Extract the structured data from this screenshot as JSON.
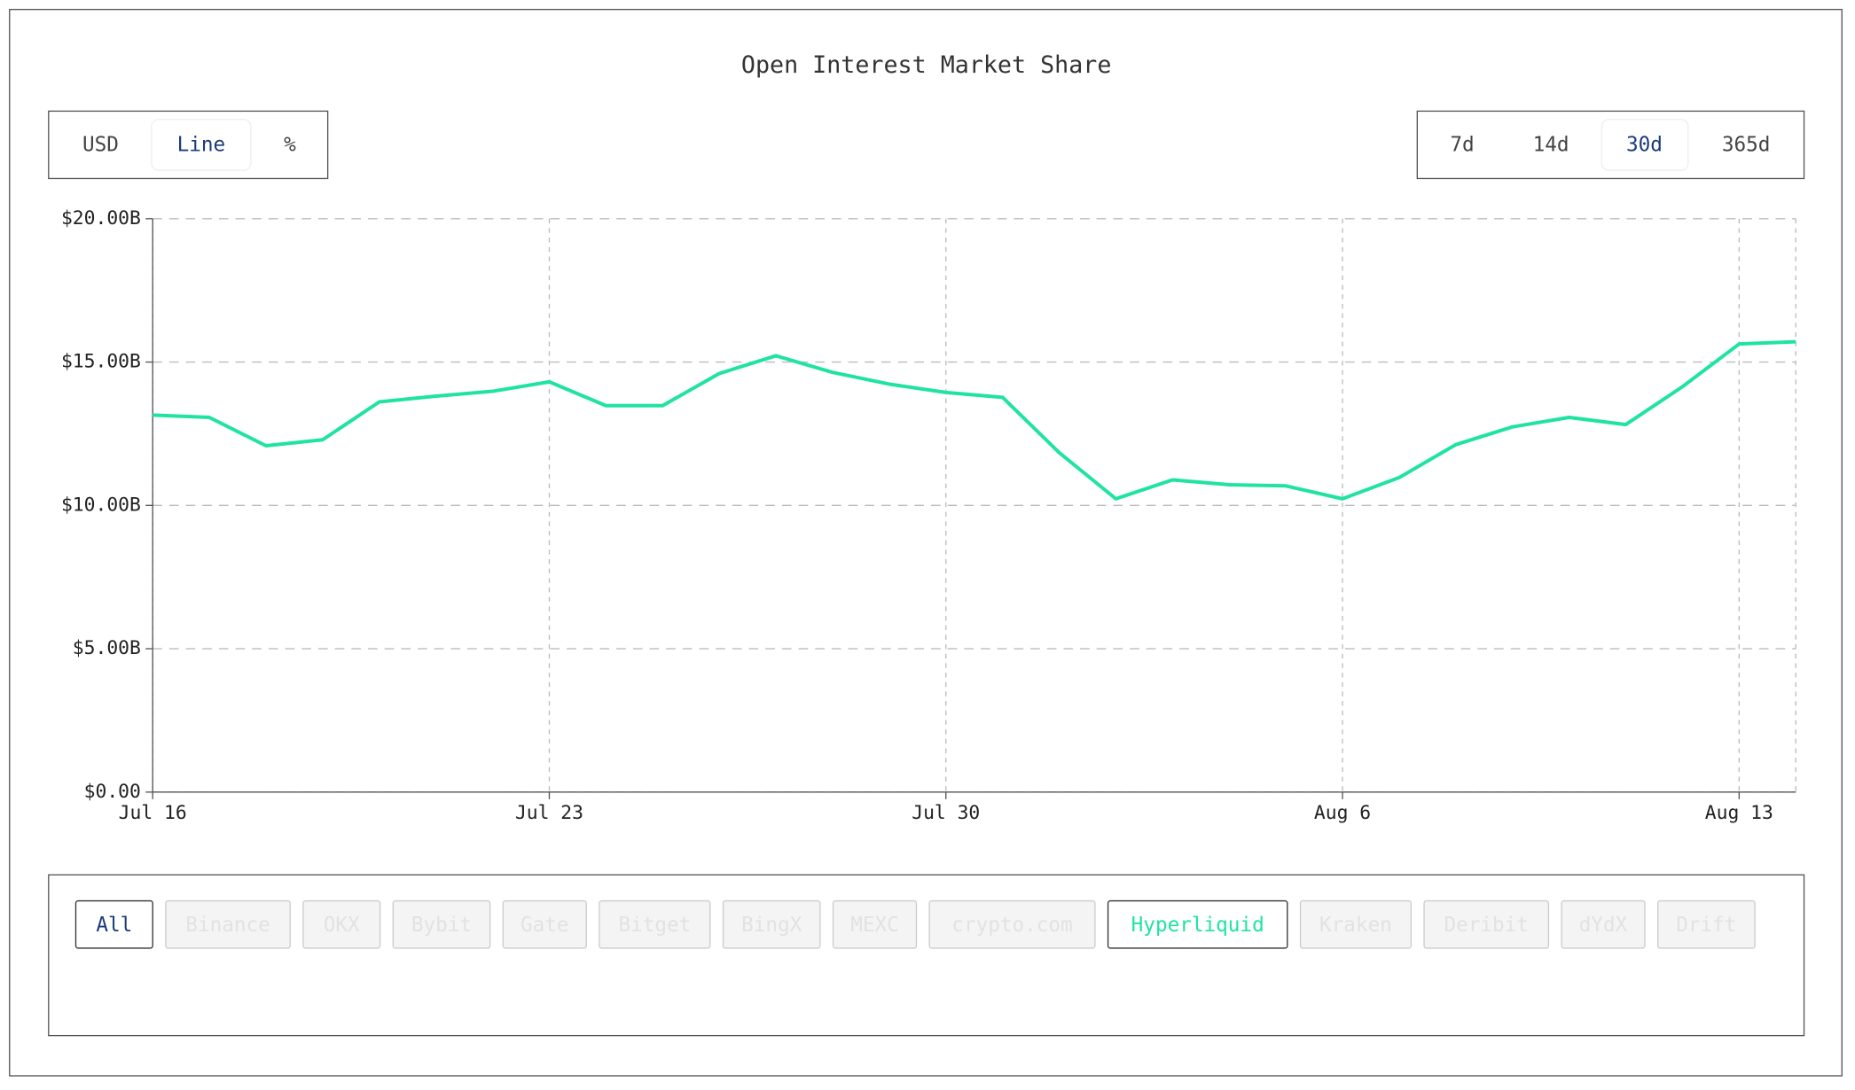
{
  "chart_data": {
    "type": "line",
    "title": "Open Interest Market Share",
    "x": [
      "Jul 16",
      "Jul 17",
      "Jul 18",
      "Jul 19",
      "Jul 20",
      "Jul 21",
      "Jul 22",
      "Jul 23",
      "Jul 24",
      "Jul 25",
      "Jul 26",
      "Jul 27",
      "Jul 28",
      "Jul 29",
      "Jul 30",
      "Jul 31",
      "Aug 1",
      "Aug 2",
      "Aug 3",
      "Aug 4",
      "Aug 5",
      "Aug 6",
      "Aug 7",
      "Aug 8",
      "Aug 9",
      "Aug 10",
      "Aug 11",
      "Aug 12",
      "Aug 13",
      "Aug 14"
    ],
    "series": [
      {
        "color": "#20e3a2",
        "values": [
          13.15,
          13.07,
          12.08,
          12.29,
          13.61,
          13.81,
          13.98,
          14.31,
          13.48,
          13.48,
          14.6,
          15.22,
          14.64,
          14.23,
          13.94,
          13.77,
          11.84,
          10.23,
          10.89,
          10.72,
          10.68,
          10.23,
          10.97,
          12.12,
          12.74,
          13.07,
          12.82,
          14.14,
          15.63,
          15.71
        ]
      }
    ],
    "xticks": [
      "Jul 16",
      "Jul 23",
      "Jul 30",
      "Aug 6",
      "Aug 13"
    ],
    "ylim": [
      0,
      20
    ],
    "yticks": [
      {
        "value": 0,
        "label": "$0.00"
      },
      {
        "value": 5,
        "label": "$5.00B"
      },
      {
        "value": 10,
        "label": "$10.00B"
      },
      {
        "value": 15,
        "label": "$15.00B"
      },
      {
        "value": 20,
        "label": "$20.00B"
      }
    ],
    "grid": true
  },
  "controls": {
    "modes": [
      "USD",
      "Line",
      "%"
    ],
    "active_mode": 1,
    "ranges": [
      "7d",
      "14d",
      "30d",
      "365d"
    ],
    "active_range": 2,
    "exchanges": [
      "All",
      "Binance",
      "OKX",
      "Bybit",
      "Gate",
      "Bitget",
      "BingX",
      "MEXC",
      "crypto.com",
      "Hyperliquid",
      "Kraken",
      "Deribit",
      "dYdX",
      "Drift"
    ],
    "active_exchanges": [
      0,
      9
    ]
  }
}
